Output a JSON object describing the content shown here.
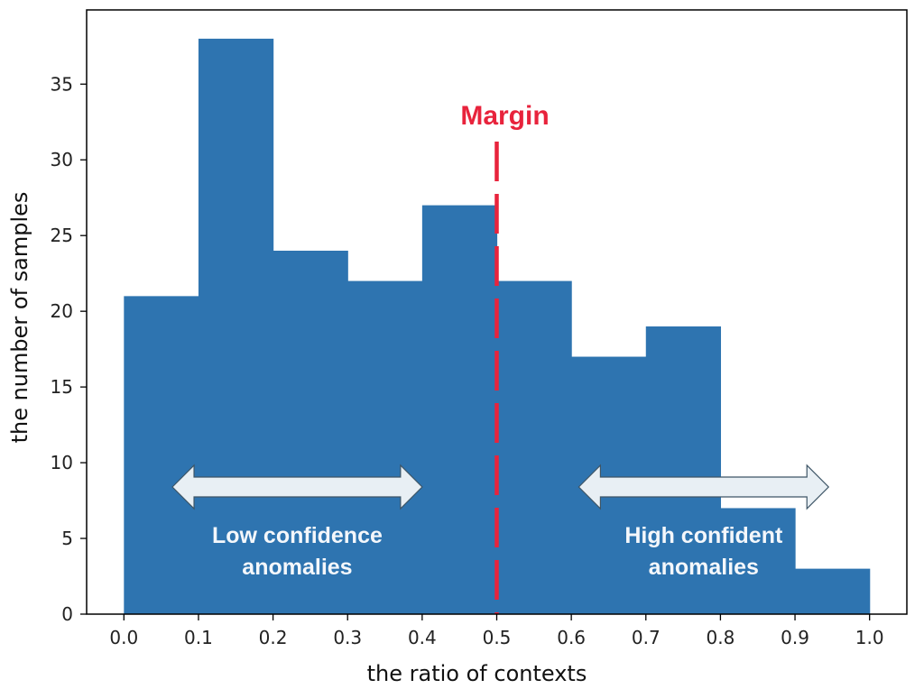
{
  "chart_data": {
    "type": "bar",
    "title": "",
    "xlabel": "the ratio of contexts",
    "ylabel": "the number of samples",
    "bin_edges": [
      0.0,
      0.1,
      0.2,
      0.3,
      0.4,
      0.5,
      0.6,
      0.7,
      0.8,
      0.9,
      1.0
    ],
    "values": [
      21,
      38,
      24,
      22,
      27,
      22,
      17,
      19,
      7,
      3
    ],
    "xlim": [
      -0.05,
      1.05
    ],
    "ylim": [
      0,
      39.9
    ],
    "x_ticks": [
      "0.0",
      "0.1",
      "0.2",
      "0.3",
      "0.4",
      "0.5",
      "0.6",
      "0.7",
      "0.8",
      "0.9",
      "1.0"
    ],
    "y_ticks": [
      "0",
      "5",
      "10",
      "15",
      "20",
      "25",
      "30",
      "35"
    ],
    "bar_color": "#2e74b0",
    "grid": false,
    "margin_line": {
      "x": 0.5,
      "label": "Margin",
      "color": "#e8233c"
    },
    "annotations": [
      {
        "line1": "Low confidence",
        "line2": "anomalies",
        "arrow_from": 0.065,
        "arrow_to": 0.4
      },
      {
        "line1": "High confident",
        "line2": "anomalies",
        "arrow_from": 0.61,
        "arrow_to": 0.945
      }
    ],
    "annotation_color": "#e8eff4",
    "annotation_text_color": "#f4f7fb"
  }
}
